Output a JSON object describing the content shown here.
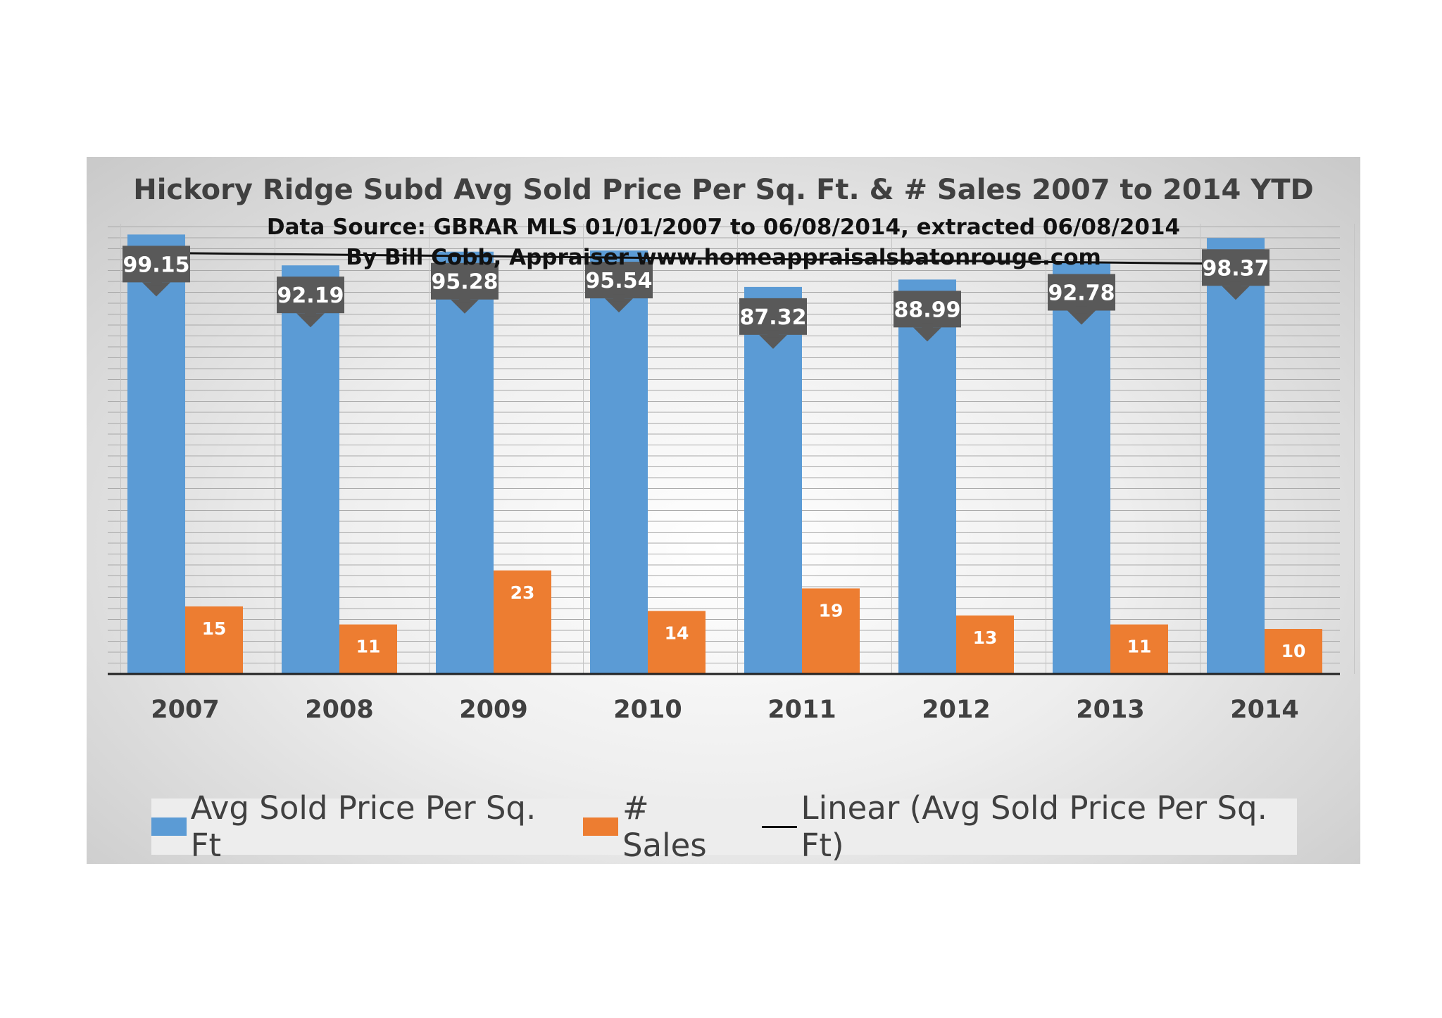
{
  "chart_data": {
    "type": "bar",
    "title": "Hickory Ridge Subd Avg Sold Price Per Sq. Ft. & # Sales 2007 to 2014 YTD",
    "subtitle_lines": [
      "Data Source: GBRAR MLS 01/01/2007 to 06/08/2014, extracted 06/08/2014",
      "By Bill Cobb, Appraiser www.homeappraisalsbatonrouge.com"
    ],
    "categories": [
      "2007",
      "2008",
      "2009",
      "2010",
      "2011",
      "2012",
      "2013",
      "2014"
    ],
    "series": [
      {
        "name": "Avg Sold Price Per Sq. Ft",
        "axis": "primary",
        "values": [
          99.15,
          92.19,
          95.28,
          95.54,
          87.32,
          88.99,
          92.78,
          98.37
        ],
        "labels": [
          "99.15",
          "92.19",
          "95.28",
          "95.54",
          "87.32",
          "88.99",
          "92.78",
          "98.37"
        ]
      },
      {
        "name": "# Sales",
        "axis": "secondary",
        "values": [
          15,
          11,
          23,
          14,
          19,
          13,
          11,
          10
        ],
        "labels": [
          "15",
          "11",
          "23",
          "14",
          "19",
          "13",
          "11",
          "10"
        ]
      }
    ],
    "trendline": {
      "name": "Linear (Avg Sold Price Per Sq. Ft)",
      "of_series": "Avg Sold Price Per Sq. Ft",
      "type": "linear"
    },
    "primary_ylim": [
      0,
      100
    ],
    "secondary_ylim": [
      0,
      100
    ],
    "grid": true,
    "legend_position": "bottom",
    "colors": {
      "price": "#5b9bd5",
      "sales": "#ed7d31",
      "trend": "#111111",
      "label_box": "#595959"
    }
  }
}
